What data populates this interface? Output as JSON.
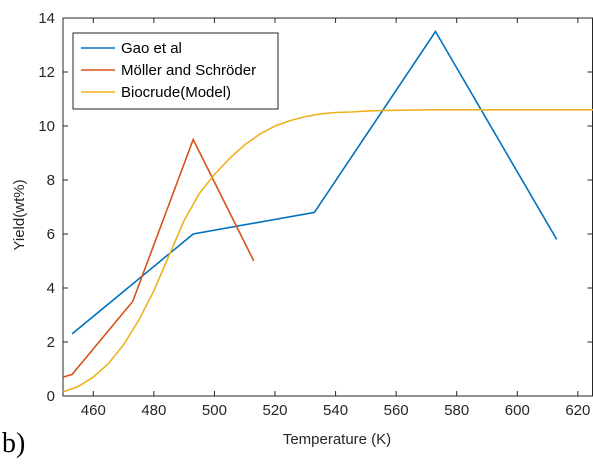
{
  "panel_label": "b)",
  "chart_data": {
    "type": "line",
    "title": "",
    "xlabel": "Temperature (K)",
    "ylabel": "Yield(wt%)",
    "xlim": [
      450,
      625
    ],
    "ylim": [
      0,
      14
    ],
    "xticks": [
      460,
      480,
      500,
      520,
      540,
      560,
      580,
      600,
      620
    ],
    "yticks": [
      0,
      2,
      4,
      6,
      8,
      10,
      12,
      14
    ],
    "grid": false,
    "legend_position": "top-left",
    "series": [
      {
        "name": "Gao et al",
        "color": "#0072BD",
        "x": [
          453,
          493,
          533,
          573,
          613
        ],
        "y": [
          2.3,
          6.0,
          6.8,
          13.5,
          5.8
        ]
      },
      {
        "name": "Möller and Schröder",
        "color": "#D95319",
        "x": [
          450,
          453,
          473,
          493,
          513
        ],
        "y": [
          0.7,
          0.8,
          3.5,
          9.5,
          5.0
        ]
      },
      {
        "name": "Biocrude(Model)",
        "color": "#EDB120",
        "x": [
          450,
          455,
          460,
          465,
          470,
          475,
          480,
          485,
          490,
          495,
          500,
          505,
          510,
          515,
          520,
          525,
          530,
          535,
          540,
          545,
          550,
          555,
          560,
          565,
          570,
          575,
          580,
          590,
          600,
          610,
          625
        ],
        "y": [
          0.15,
          0.35,
          0.7,
          1.2,
          1.9,
          2.8,
          3.9,
          5.2,
          6.5,
          7.5,
          8.2,
          8.8,
          9.3,
          9.7,
          10.0,
          10.2,
          10.35,
          10.45,
          10.5,
          10.52,
          10.55,
          10.57,
          10.58,
          10.59,
          10.6,
          10.6,
          10.6,
          10.6,
          10.6,
          10.6,
          10.6
        ]
      }
    ]
  }
}
